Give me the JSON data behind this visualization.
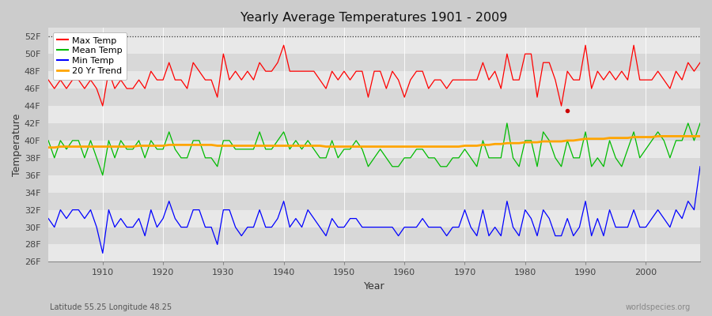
{
  "title": "Yearly Average Temperatures 1901 - 2009",
  "xlabel": "Year",
  "ylabel": "Temperature",
  "subtitle_left": "Latitude 55.25 Longitude 48.25",
  "subtitle_right": "worldspecies.org",
  "ylim": [
    26,
    53
  ],
  "yticks": [
    26,
    28,
    30,
    32,
    34,
    36,
    38,
    40,
    42,
    44,
    46,
    48,
    50,
    52
  ],
  "ytick_labels": [
    "26F",
    "28F",
    "30F",
    "32F",
    "34F",
    "36F",
    "38F",
    "40F",
    "42F",
    "44F",
    "46F",
    "48F",
    "50F",
    "52F"
  ],
  "xlim": [
    1901,
    2009
  ],
  "bg_color": "#e8e8e8",
  "alt_bg_color": "#d8d8d8",
  "grid_color": "#ffffff",
  "dotted_line_y": 52,
  "legend_labels": [
    "Max Temp",
    "Mean Temp",
    "Min Temp",
    "20 Yr Trend"
  ],
  "legend_colors": [
    "#ff0000",
    "#00bb00",
    "#0000ff",
    "#ffa500"
  ],
  "years": [
    1901,
    1902,
    1903,
    1904,
    1905,
    1906,
    1907,
    1908,
    1909,
    1910,
    1911,
    1912,
    1913,
    1914,
    1915,
    1916,
    1917,
    1918,
    1919,
    1920,
    1921,
    1922,
    1923,
    1924,
    1925,
    1926,
    1927,
    1928,
    1929,
    1930,
    1931,
    1932,
    1933,
    1934,
    1935,
    1936,
    1937,
    1938,
    1939,
    1940,
    1941,
    1942,
    1943,
    1944,
    1945,
    1946,
    1947,
    1948,
    1949,
    1950,
    1951,
    1952,
    1953,
    1954,
    1955,
    1956,
    1957,
    1958,
    1959,
    1960,
    1961,
    1962,
    1963,
    1964,
    1965,
    1966,
    1967,
    1968,
    1969,
    1970,
    1971,
    1972,
    1973,
    1974,
    1975,
    1976,
    1977,
    1978,
    1979,
    1980,
    1981,
    1982,
    1983,
    1984,
    1985,
    1986,
    1987,
    1988,
    1989,
    1990,
    1991,
    1992,
    1993,
    1994,
    1995,
    1996,
    1997,
    1998,
    1999,
    2000,
    2001,
    2002,
    2003,
    2004,
    2005,
    2006,
    2007,
    2008,
    2009
  ],
  "max_temp": [
    47,
    46,
    47,
    46,
    47,
    47,
    46,
    47,
    46,
    44,
    48,
    46,
    47,
    46,
    46,
    47,
    46,
    48,
    47,
    47,
    49,
    47,
    47,
    46,
    49,
    48,
    47,
    47,
    45,
    50,
    47,
    48,
    47,
    48,
    47,
    49,
    48,
    48,
    49,
    51,
    48,
    48,
    48,
    48,
    48,
    47,
    46,
    48,
    47,
    48,
    47,
    48,
    48,
    45,
    48,
    48,
    46,
    48,
    47,
    45,
    47,
    48,
    48,
    46,
    47,
    47,
    46,
    47,
    47,
    47,
    47,
    47,
    49,
    47,
    48,
    46,
    50,
    47,
    47,
    50,
    50,
    45,
    49,
    49,
    47,
    44,
    48,
    47,
    47,
    51,
    46,
    48,
    47,
    48,
    47,
    48,
    47,
    51,
    47,
    47,
    47,
    48,
    47,
    46,
    48,
    47,
    49,
    48,
    49
  ],
  "mean_temp": [
    40,
    38,
    40,
    39,
    40,
    40,
    38,
    40,
    38,
    36,
    40,
    38,
    40,
    39,
    39,
    40,
    38,
    40,
    39,
    39,
    41,
    39,
    38,
    38,
    40,
    40,
    38,
    38,
    37,
    40,
    40,
    39,
    39,
    39,
    39,
    41,
    39,
    39,
    40,
    41,
    39,
    40,
    39,
    40,
    39,
    38,
    38,
    40,
    38,
    39,
    39,
    40,
    39,
    37,
    38,
    39,
    38,
    37,
    37,
    38,
    38,
    39,
    39,
    38,
    38,
    37,
    37,
    38,
    38,
    39,
    38,
    37,
    40,
    38,
    38,
    38,
    42,
    38,
    37,
    40,
    40,
    37,
    41,
    40,
    38,
    37,
    40,
    38,
    38,
    41,
    37,
    38,
    37,
    40,
    38,
    37,
    39,
    41,
    38,
    39,
    40,
    41,
    40,
    38,
    40,
    40,
    42,
    40,
    42
  ],
  "min_temp": [
    31,
    30,
    32,
    31,
    32,
    32,
    31,
    32,
    30,
    27,
    32,
    30,
    31,
    30,
    30,
    31,
    29,
    32,
    30,
    31,
    33,
    31,
    30,
    30,
    32,
    32,
    30,
    30,
    28,
    32,
    32,
    30,
    29,
    30,
    30,
    32,
    30,
    30,
    31,
    33,
    30,
    31,
    30,
    32,
    31,
    30,
    29,
    31,
    30,
    30,
    31,
    31,
    30,
    30,
    30,
    30,
    30,
    30,
    29,
    30,
    30,
    30,
    31,
    30,
    30,
    30,
    29,
    30,
    30,
    32,
    30,
    29,
    32,
    29,
    30,
    29,
    33,
    30,
    29,
    32,
    31,
    29,
    32,
    31,
    29,
    29,
    31,
    29,
    30,
    33,
    29,
    31,
    29,
    32,
    30,
    30,
    30,
    32,
    30,
    30,
    31,
    32,
    31,
    30,
    32,
    31,
    33,
    32,
    37
  ],
  "trend": [
    39.2,
    39.2,
    39.3,
    39.3,
    39.3,
    39.3,
    39.3,
    39.3,
    39.3,
    39.3,
    39.3,
    39.3,
    39.3,
    39.3,
    39.3,
    39.4,
    39.4,
    39.4,
    39.4,
    39.4,
    39.5,
    39.5,
    39.5,
    39.5,
    39.5,
    39.5,
    39.5,
    39.5,
    39.4,
    39.4,
    39.4,
    39.4,
    39.4,
    39.4,
    39.4,
    39.4,
    39.4,
    39.4,
    39.4,
    39.4,
    39.4,
    39.4,
    39.4,
    39.4,
    39.4,
    39.4,
    39.3,
    39.3,
    39.3,
    39.3,
    39.3,
    39.3,
    39.3,
    39.3,
    39.3,
    39.3,
    39.3,
    39.3,
    39.3,
    39.3,
    39.3,
    39.3,
    39.3,
    39.3,
    39.3,
    39.3,
    39.3,
    39.3,
    39.3,
    39.4,
    39.4,
    39.4,
    39.5,
    39.5,
    39.6,
    39.6,
    39.7,
    39.7,
    39.7,
    39.8,
    39.8,
    39.8,
    39.9,
    39.9,
    39.9,
    39.9,
    40.0,
    40.0,
    40.1,
    40.2,
    40.2,
    40.2,
    40.2,
    40.3,
    40.3,
    40.3,
    40.3,
    40.4,
    40.4,
    40.4,
    40.4,
    40.5,
    40.5,
    40.5,
    40.5,
    40.5,
    40.5,
    40.5,
    40.5
  ]
}
